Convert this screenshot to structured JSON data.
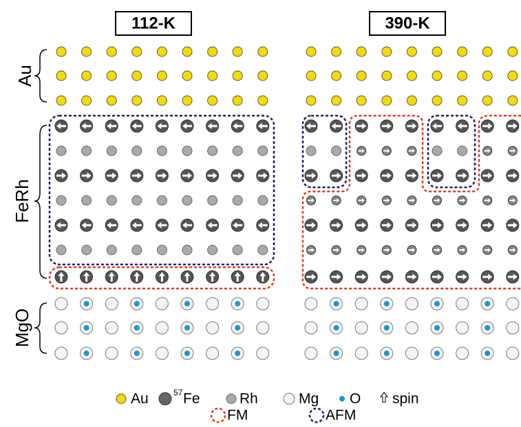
{
  "panels": [
    {
      "title": "112-K"
    },
    {
      "title": "390-K"
    }
  ],
  "layers": [
    {
      "label": "Au"
    },
    {
      "label": "FeRh"
    },
    {
      "label": "MgO"
    }
  ],
  "legend": {
    "atoms": [
      {
        "label": "Au"
      },
      {
        "superscript": "57",
        "label": "Fe"
      },
      {
        "label": "Rh"
      },
      {
        "label": "Mg"
      },
      {
        "label": "O"
      },
      {
        "label": "spin"
      }
    ],
    "regions": [
      {
        "label": "FM"
      },
      {
        "label": "AFM"
      }
    ]
  }
}
